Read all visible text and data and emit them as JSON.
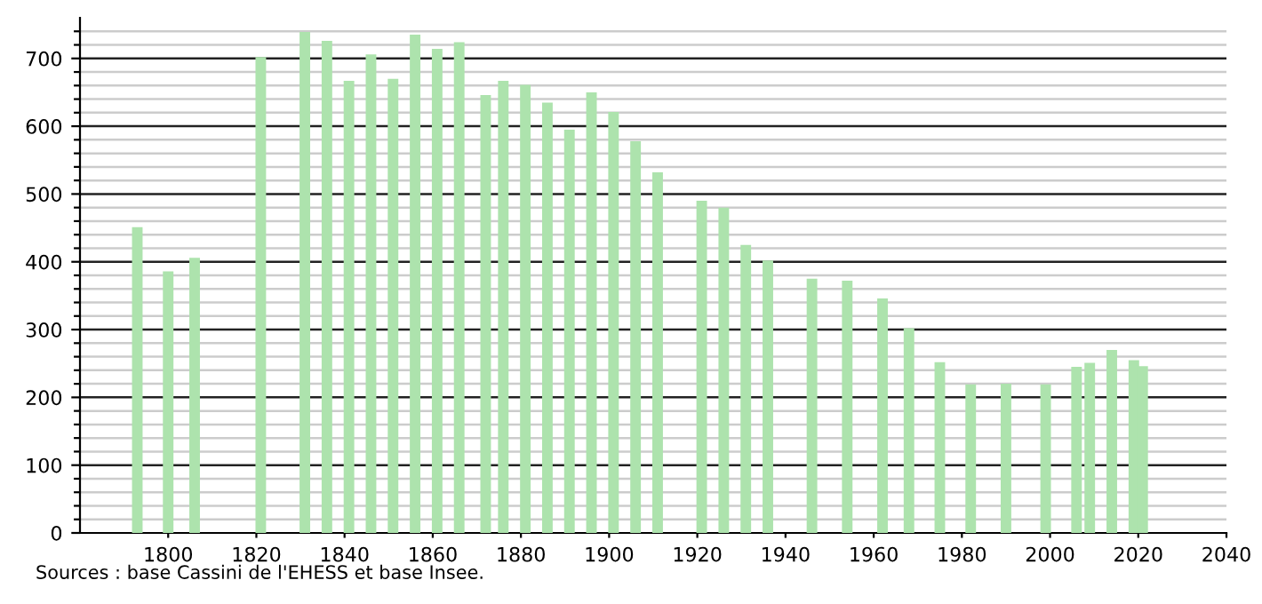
{
  "chart_data": {
    "type": "bar",
    "x": [
      1793,
      1800,
      1806,
      1821,
      1831,
      1836,
      1841,
      1846,
      1851,
      1856,
      1861,
      1866,
      1872,
      1876,
      1881,
      1886,
      1891,
      1896,
      1901,
      1906,
      1911,
      1921,
      1926,
      1931,
      1936,
      1946,
      1954,
      1962,
      1968,
      1975,
      1982,
      1990,
      1999,
      2006,
      2009,
      2014,
      2019,
      2021
    ],
    "values": [
      451,
      386,
      406,
      702,
      739,
      726,
      667,
      706,
      670,
      735,
      714,
      724,
      646,
      667,
      661,
      635,
      595,
      650,
      621,
      578,
      532,
      490,
      480,
      425,
      402,
      375,
      372,
      346,
      302,
      252,
      219,
      220,
      219,
      245,
      251,
      270,
      255,
      246
    ],
    "color": "#ade3ad",
    "xlim": [
      1780,
      2040
    ],
    "xticks": [
      1800,
      1820,
      1840,
      1860,
      1880,
      1900,
      1920,
      1940,
      1960,
      1980,
      2000,
      2020,
      2040
    ],
    "ylim": [
      0,
      760
    ],
    "yticks": [
      0,
      {
        "value": 20,
        "label": null
      },
      {
        "value": 40,
        "label": null
      },
      {
        "value": 60,
        "label": null
      },
      {
        "value": 80,
        "label": null
      },
      100,
      {
        "value": 120,
        "label": null
      },
      {
        "value": 140,
        "label": null
      },
      {
        "value": 160,
        "label": null
      },
      {
        "value": 180,
        "label": null
      },
      200,
      {
        "value": 220,
        "label": null
      },
      {
        "value": 240,
        "label": null
      },
      {
        "value": 260,
        "label": null
      },
      {
        "value": 280,
        "label": null
      },
      300,
      {
        "value": 320,
        "label": null
      },
      {
        "value": 340,
        "label": null
      },
      {
        "value": 360,
        "label": null
      },
      {
        "value": 380,
        "label": null
      },
      400,
      {
        "value": 420,
        "label": null
      },
      {
        "value": 440,
        "label": null
      },
      {
        "value": 460,
        "label": null
      },
      {
        "value": 480,
        "label": null
      },
      500,
      {
        "value": 520,
        "label": null
      },
      {
        "value": 540,
        "label": null
      },
      {
        "value": 560,
        "label": null
      },
      {
        "value": 580,
        "label": null
      },
      600,
      {
        "value": 620,
        "label": null
      },
      {
        "value": 640,
        "label": null
      },
      {
        "value": 660,
        "label": null
      },
      {
        "value": 680,
        "label": null
      },
      700,
      {
        "value": 720,
        "label": null
      },
      {
        "value": 740,
        "label": null
      }
    ],
    "grid": "y",
    "annotations": [
      "Sources : base Cassini de l'EHESS et base Insee."
    ]
  }
}
